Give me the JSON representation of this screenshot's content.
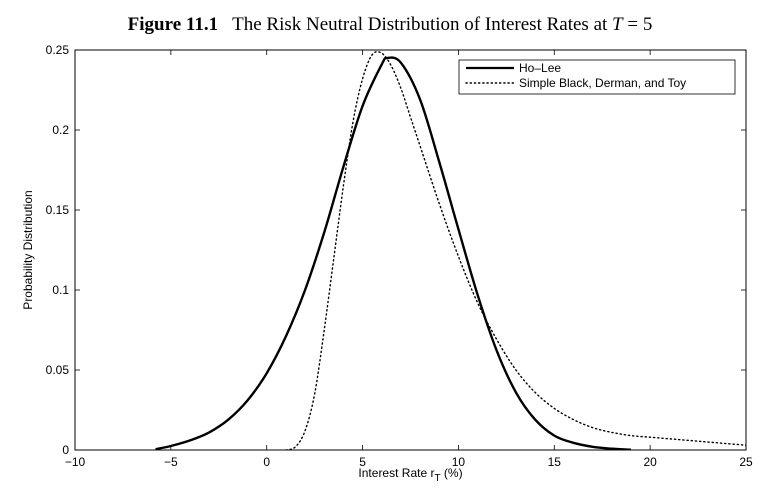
{
  "figure": {
    "label": "Figure 11.1",
    "title_prefix": "The Risk Neutral Distribution of Interest Rates at ",
    "title_var": "T",
    "title_suffix": " = 5"
  },
  "chart_data": {
    "type": "line",
    "xlabel": "Interest Rate r",
    "xlabel_sub": "T",
    "xlabel_unit": " (%)",
    "ylabel": "Probability Distribution",
    "xlim": [
      -10,
      25
    ],
    "ylim": [
      0,
      0.25
    ],
    "xticks": [
      -10,
      -5,
      0,
      5,
      10,
      15,
      20,
      25
    ],
    "xtick_labels": [
      "−10",
      "−5",
      "0",
      "5",
      "10",
      "15",
      "20",
      "25"
    ],
    "yticks": [
      0,
      0.05,
      0.1,
      0.15,
      0.2,
      0.25
    ],
    "ytick_labels": [
      "0",
      "0.05",
      "0.1",
      "0.15",
      "0.2",
      "0.25"
    ],
    "grid": false,
    "legend_position": "top-right",
    "series": [
      {
        "name": "Ho–Lee",
        "style": "solid",
        "color": "#000000",
        "x": [
          -5.8,
          -5,
          -4,
          -3,
          -2,
          -1,
          0,
          1,
          2,
          3,
          4,
          5,
          6,
          6.3,
          7,
          8,
          9,
          10,
          11,
          12,
          13,
          14,
          15,
          16,
          17,
          18,
          19
        ],
        "y": [
          0.0005,
          0.0025,
          0.006,
          0.011,
          0.019,
          0.031,
          0.048,
          0.071,
          0.1,
          0.136,
          0.177,
          0.215,
          0.241,
          0.245,
          0.242,
          0.219,
          0.18,
          0.138,
          0.097,
          0.062,
          0.036,
          0.019,
          0.009,
          0.0045,
          0.002,
          0.0008,
          0.0002
        ]
      },
      {
        "name": "Simple Black, Derman, and Toy",
        "style": "dotted",
        "color": "#000000",
        "x": [
          1.0,
          1.5,
          2,
          2.5,
          3,
          3.5,
          4,
          4.5,
          5,
          5.5,
          6,
          6.5,
          7,
          7.5,
          8,
          9,
          10,
          11,
          12,
          13,
          14,
          15,
          16,
          17,
          18,
          19,
          20,
          21,
          22,
          23,
          24,
          25
        ],
        "y": [
          0.0,
          0.002,
          0.012,
          0.035,
          0.075,
          0.12,
          0.165,
          0.205,
          0.232,
          0.247,
          0.248,
          0.24,
          0.226,
          0.208,
          0.19,
          0.154,
          0.121,
          0.092,
          0.069,
          0.05,
          0.036,
          0.026,
          0.019,
          0.014,
          0.011,
          0.009,
          0.008,
          0.007,
          0.006,
          0.005,
          0.004,
          0.003
        ]
      }
    ]
  }
}
